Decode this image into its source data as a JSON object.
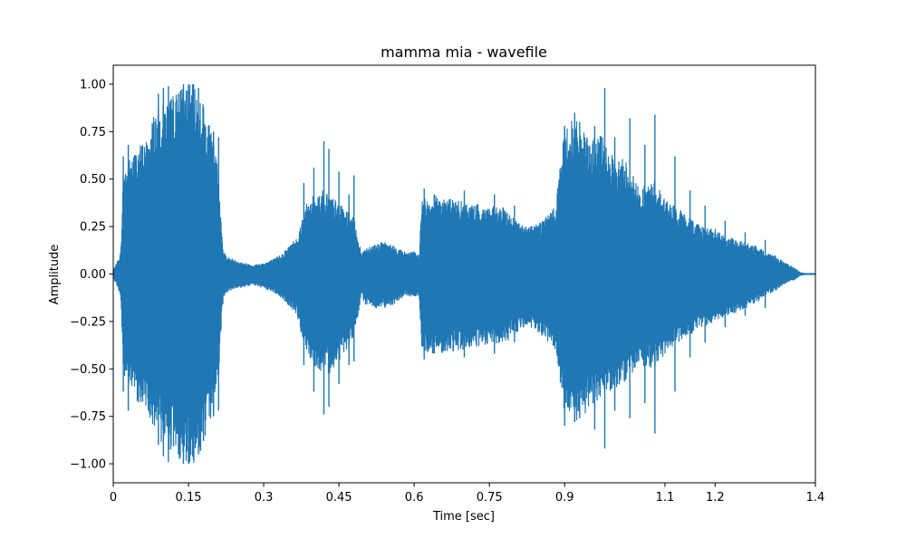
{
  "chart_data": {
    "type": "line",
    "title": "mamma mia - wavefile",
    "xlabel": "Time [sec]",
    "ylabel": "Amplitude",
    "xlim": [
      0,
      1.4
    ],
    "ylim": [
      -1.1,
      1.1
    ],
    "x_ticks": [
      0,
      0.15,
      0.3,
      0.45,
      0.6,
      0.75,
      0.9,
      1.1,
      1.2,
      1.4
    ],
    "x_tick_labels": [
      "0",
      "0.15",
      "0.3",
      "0.45",
      "0.6",
      "0.75",
      "0.9",
      "1.1",
      "1.2",
      "1.4"
    ],
    "y_ticks": [
      1.0,
      0.75,
      0.5,
      0.25,
      0.0,
      -0.25,
      -0.5,
      -0.75,
      -1.0
    ],
    "y_tick_labels": [
      "1.00",
      "0.75",
      "0.50",
      "0.25",
      "0.00",
      "−0.25",
      "−0.50",
      "−0.75",
      "−1.00"
    ],
    "grid": false,
    "series": [
      {
        "color": "#1f77b4",
        "envelope_x": [
          0.0,
          0.005,
          0.01,
          0.015,
          0.02,
          0.03,
          0.05,
          0.07,
          0.08,
          0.1,
          0.12,
          0.14,
          0.15,
          0.16,
          0.18,
          0.2,
          0.21,
          0.215,
          0.22,
          0.23,
          0.26,
          0.28,
          0.3,
          0.32,
          0.34,
          0.36,
          0.37,
          0.38,
          0.4,
          0.42,
          0.44,
          0.46,
          0.48,
          0.49,
          0.495,
          0.5,
          0.52,
          0.54,
          0.56,
          0.58,
          0.6,
          0.61,
          0.615,
          0.62,
          0.65,
          0.7,
          0.75,
          0.78,
          0.8,
          0.82,
          0.85,
          0.88,
          0.9,
          0.92,
          0.95,
          0.97,
          1.0,
          1.02,
          1.05,
          1.08,
          1.1,
          1.12,
          1.15,
          1.18,
          1.2,
          1.22,
          1.25,
          1.28,
          1.3,
          1.32,
          1.34,
          1.36,
          1.37,
          1.38,
          1.4
        ],
        "envelope_upper": [
          0.02,
          0.05,
          0.08,
          0.12,
          0.55,
          0.6,
          0.68,
          0.72,
          0.85,
          0.9,
          0.95,
          1.0,
          1.0,
          1.0,
          0.9,
          0.7,
          0.55,
          0.3,
          0.12,
          0.09,
          0.06,
          0.05,
          0.06,
          0.08,
          0.12,
          0.18,
          0.22,
          0.35,
          0.42,
          0.45,
          0.4,
          0.35,
          0.3,
          0.18,
          0.1,
          0.14,
          0.16,
          0.17,
          0.15,
          0.12,
          0.12,
          0.1,
          0.4,
          0.4,
          0.42,
          0.38,
          0.36,
          0.35,
          0.3,
          0.25,
          0.28,
          0.35,
          0.78,
          0.82,
          0.7,
          0.75,
          0.6,
          0.62,
          0.45,
          0.5,
          0.4,
          0.36,
          0.3,
          0.25,
          0.24,
          0.2,
          0.18,
          0.15,
          0.12,
          0.1,
          0.06,
          0.03,
          0.01,
          0.005,
          0.005
        ],
        "envelope_lower": [
          -0.02,
          -0.05,
          -0.08,
          -0.12,
          -0.55,
          -0.6,
          -0.68,
          -0.72,
          -0.85,
          -0.9,
          -0.95,
          -1.0,
          -1.0,
          -1.0,
          -0.92,
          -0.72,
          -0.55,
          -0.3,
          -0.12,
          -0.09,
          -0.07,
          -0.06,
          -0.08,
          -0.1,
          -0.14,
          -0.2,
          -0.25,
          -0.38,
          -0.48,
          -0.55,
          -0.5,
          -0.42,
          -0.35,
          -0.2,
          -0.1,
          -0.16,
          -0.18,
          -0.18,
          -0.16,
          -0.12,
          -0.12,
          -0.12,
          -0.4,
          -0.42,
          -0.42,
          -0.4,
          -0.38,
          -0.37,
          -0.32,
          -0.28,
          -0.32,
          -0.4,
          -0.75,
          -0.8,
          -0.72,
          -0.65,
          -0.6,
          -0.58,
          -0.48,
          -0.5,
          -0.42,
          -0.38,
          -0.32,
          -0.28,
          -0.25,
          -0.22,
          -0.2,
          -0.16,
          -0.12,
          -0.09,
          -0.05,
          -0.03,
          -0.01,
          -0.005,
          -0.005
        ],
        "peaks_upper": [
          [
            0.02,
            0.62
          ],
          [
            0.03,
            0.68
          ],
          [
            0.05,
            0.58
          ],
          [
            0.07,
            0.66
          ],
          [
            0.09,
            0.95
          ],
          [
            0.1,
            0.98
          ],
          [
            0.11,
            0.99
          ],
          [
            0.13,
            0.95
          ],
          [
            0.14,
            1.0
          ],
          [
            0.15,
            1.0
          ],
          [
            0.16,
            1.0
          ],
          [
            0.17,
            0.98
          ],
          [
            0.18,
            0.88
          ],
          [
            0.2,
            0.75
          ],
          [
            0.21,
            0.72
          ],
          [
            0.38,
            0.48
          ],
          [
            0.4,
            0.56
          ],
          [
            0.42,
            0.7
          ],
          [
            0.43,
            0.66
          ],
          [
            0.45,
            0.54
          ],
          [
            0.47,
            0.42
          ],
          [
            0.48,
            0.52
          ],
          [
            0.62,
            0.45
          ],
          [
            0.64,
            0.42
          ],
          [
            0.7,
            0.44
          ],
          [
            0.76,
            0.42
          ],
          [
            0.8,
            0.36
          ],
          [
            0.9,
            0.78
          ],
          [
            0.92,
            0.85
          ],
          [
            0.93,
            0.8
          ],
          [
            0.96,
            0.78
          ],
          [
            0.98,
            0.98
          ],
          [
            1.0,
            0.72
          ],
          [
            1.03,
            0.82
          ],
          [
            1.06,
            0.68
          ],
          [
            1.08,
            0.84
          ],
          [
            1.12,
            0.62
          ],
          [
            1.15,
            0.44
          ],
          [
            1.18,
            0.36
          ],
          [
            1.22,
            0.28
          ],
          [
            1.26,
            0.22
          ],
          [
            1.3,
            0.18
          ]
        ],
        "peaks_lower": [
          [
            0.02,
            -0.62
          ],
          [
            0.03,
            -0.72
          ],
          [
            0.05,
            -0.64
          ],
          [
            0.07,
            -0.72
          ],
          [
            0.09,
            -0.9
          ],
          [
            0.1,
            -0.96
          ],
          [
            0.11,
            -0.99
          ],
          [
            0.13,
            -0.95
          ],
          [
            0.14,
            -1.0
          ],
          [
            0.15,
            -1.0
          ],
          [
            0.16,
            -0.98
          ],
          [
            0.17,
            -0.95
          ],
          [
            0.18,
            -0.88
          ],
          [
            0.2,
            -0.75
          ],
          [
            0.21,
            -0.72
          ],
          [
            0.38,
            -0.48
          ],
          [
            0.4,
            -0.62
          ],
          [
            0.42,
            -0.74
          ],
          [
            0.43,
            -0.7
          ],
          [
            0.45,
            -0.58
          ],
          [
            0.47,
            -0.48
          ],
          [
            0.48,
            -0.46
          ],
          [
            0.62,
            -0.45
          ],
          [
            0.64,
            -0.42
          ],
          [
            0.7,
            -0.44
          ],
          [
            0.76,
            -0.42
          ],
          [
            0.8,
            -0.36
          ],
          [
            0.9,
            -0.8
          ],
          [
            0.92,
            -0.78
          ],
          [
            0.93,
            -0.76
          ],
          [
            0.96,
            -0.82
          ],
          [
            0.98,
            -0.92
          ],
          [
            1.0,
            -0.72
          ],
          [
            1.03,
            -0.76
          ],
          [
            1.06,
            -0.68
          ],
          [
            1.08,
            -0.84
          ],
          [
            1.12,
            -0.62
          ],
          [
            1.15,
            -0.44
          ],
          [
            1.18,
            -0.36
          ],
          [
            1.22,
            -0.28
          ],
          [
            1.26,
            -0.22
          ],
          [
            1.3,
            -0.18
          ]
        ]
      }
    ]
  }
}
